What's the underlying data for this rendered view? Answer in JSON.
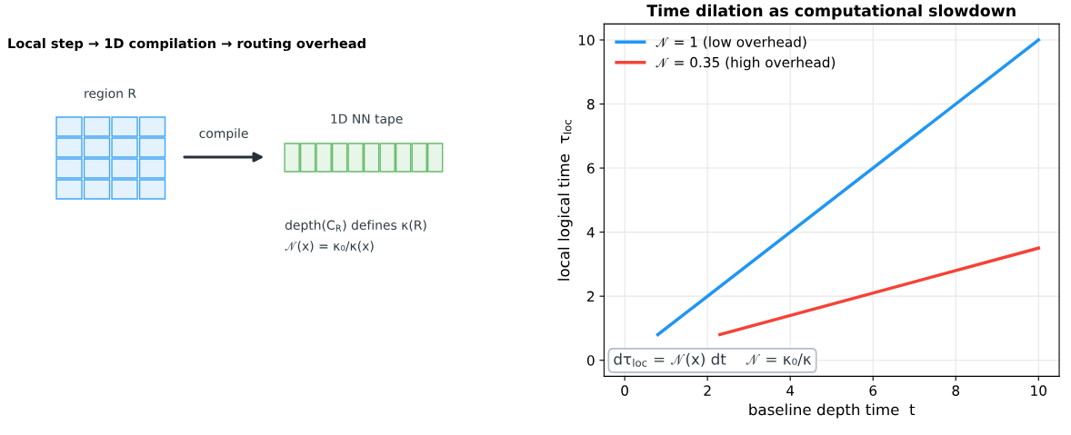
{
  "chart_data": [
    {
      "type": "other",
      "title": "Local step → 1D compilation → routing overhead",
      "annotations": [
        "region R",
        "compile",
        "1D NN tape",
        "depth(C$_{R}$) defines κ(R)",
        "𝒩(x) = κ₀/κ(x)"
      ]
    },
    {
      "type": "line",
      "title": "Time dilation as computational slowdown",
      "xlabel": "baseline depth time  t",
      "ylabel": "local logical time  τ$_{loc}$",
      "series": [
        {
          "name": "𝒩 = 1 (low overhead)",
          "color": "#2196f3",
          "x": [
            0.8,
            10
          ],
          "values": [
            0.8,
            10
          ]
        },
        {
          "name": "𝒩 = 0.35 (high overhead)",
          "color": "#f44336",
          "x": [
            2.3,
            10
          ],
          "values": [
            0.8,
            3.5
          ]
        }
      ],
      "xlim": [
        -0.5,
        10.5
      ],
      "ylim": [
        -0.5,
        10.5
      ],
      "xticks": [
        0,
        2,
        4,
        6,
        8,
        10
      ],
      "yticks": [
        0,
        2,
        4,
        6,
        8,
        10
      ],
      "grid": true,
      "legend": "top left",
      "line_style": "solid",
      "marker": "none",
      "annotations": [
        "dτ$_{loc}$ = 𝒩(x) dt    𝒩 = κ₀/κ"
      ]
    }
  ]
}
